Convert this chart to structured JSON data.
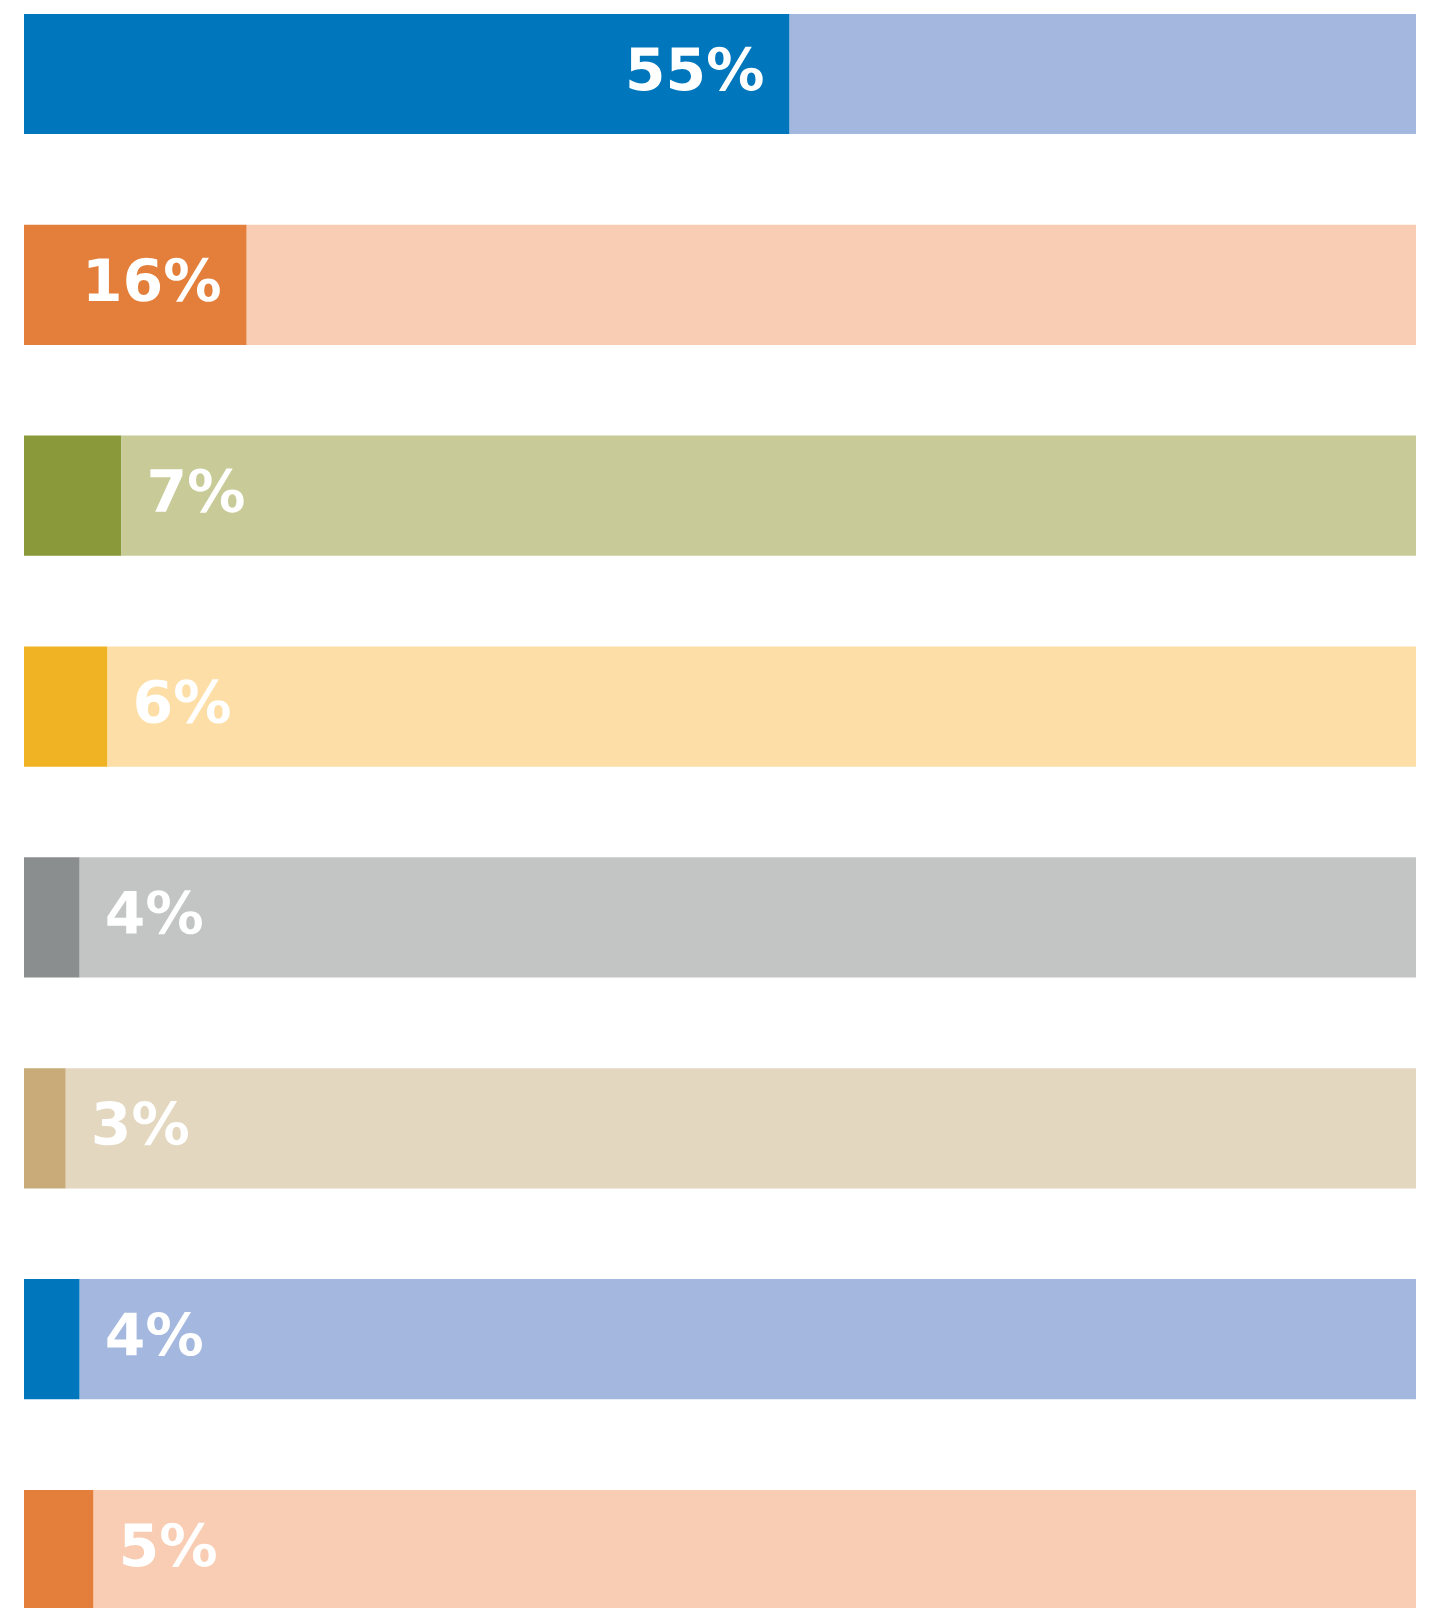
{
  "chart_data": {
    "type": "bar",
    "orientation": "horizontal",
    "stacked": true,
    "categories": [
      null,
      null,
      null,
      null,
      null,
      null,
      null,
      null
    ],
    "xlim": [
      0,
      100
    ],
    "grid": false,
    "legend": false,
    "series": [
      {
        "colors": [
          "#0077bc",
          "#e37f3a",
          "#8a9a3a",
          "#f0b323",
          "#8b8e8f",
          "#c8ab78",
          "#0077bc",
          "#e37f3a"
        ],
        "values": [
          55,
          16,
          7,
          6,
          4,
          3,
          4,
          5
        ],
        "value_labels": [
          "55%",
          "16%",
          "7%",
          "6%",
          "4%",
          "3%",
          "4%",
          "5%"
        ]
      },
      {
        "colors": [
          "#a4b8df",
          "#f9cdb3",
          "#c8cb98",
          "#fddea6",
          "#c3c4c4",
          "#e4d7c0",
          "#a4b8df",
          "#f9cdb3"
        ],
        "values": [
          45,
          84,
          93,
          94,
          96,
          97,
          96,
          95
        ]
      }
    ]
  }
}
